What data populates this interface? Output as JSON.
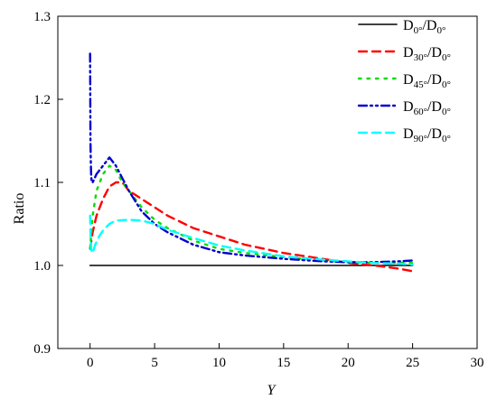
{
  "chart_data": {
    "type": "line",
    "title": "",
    "xlabel": "Y",
    "ylabel": "Ratio",
    "xlim": [
      -2.5,
      30
    ],
    "ylim": [
      0.9,
      1.3
    ],
    "x_ticks": [
      0,
      5,
      10,
      15,
      20,
      25,
      30
    ],
    "y_ticks": [
      0.9,
      1.0,
      1.1,
      1.2,
      1.3
    ],
    "x_tick_labels": [
      "0",
      "5",
      "10",
      "15",
      "20",
      "25",
      "30"
    ],
    "y_tick_labels": [
      "0.9",
      "1.0",
      "1.1",
      "1.2",
      "1.3"
    ],
    "grid": false,
    "legend_position": "top-right",
    "series": [
      {
        "legend": {
          "base": "D",
          "sub": "0°",
          "sep": "/D",
          "sub2": "0°"
        },
        "color": "#000000",
        "dash": "solid",
        "x": [
          0,
          25
        ],
        "y": [
          1.0,
          1.0
        ]
      },
      {
        "legend": {
          "base": "D",
          "sub": "30°",
          "sep": "/D",
          "sub2": "0°"
        },
        "color": "#ff0000",
        "dash": "dash",
        "x": [
          0,
          0.2,
          0.5,
          1.0,
          1.5,
          2.0,
          2.5,
          3.0,
          4.0,
          5.0,
          6.0,
          8.0,
          10.0,
          12.0,
          15.0,
          18.0,
          20.0,
          22.0,
          24.0,
          25.0
        ],
        "y": [
          1.02,
          1.04,
          1.06,
          1.08,
          1.095,
          1.1,
          1.1,
          1.09,
          1.08,
          1.07,
          1.06,
          1.045,
          1.035,
          1.025,
          1.015,
          1.008,
          1.003,
          1.0,
          0.996,
          0.993
        ]
      },
      {
        "legend": {
          "base": "D",
          "sub": "45°",
          "sep": "/D",
          "sub2": "0°"
        },
        "color": "#00dd00",
        "dash": "dot",
        "x": [
          0,
          0.2,
          0.5,
          1.0,
          1.5,
          2.0,
          2.5,
          3.0,
          4.0,
          5.0,
          6.0,
          8.0,
          10.0,
          12.0,
          15.0,
          18.0,
          20.0,
          22.0,
          24.0,
          25.0
        ],
        "y": [
          1.02,
          1.06,
          1.09,
          1.11,
          1.12,
          1.115,
          1.1,
          1.09,
          1.07,
          1.055,
          1.045,
          1.03,
          1.02,
          1.015,
          1.01,
          1.006,
          1.004,
          1.003,
          1.003,
          1.003
        ]
      },
      {
        "legend": {
          "base": "D",
          "sub": "60°",
          "sep": "/D",
          "sub2": "0°"
        },
        "color": "#0000cc",
        "dash": "dashdotdot",
        "x": [
          0.0,
          0.01,
          0.02,
          0.03,
          0.05,
          0.08,
          0.12,
          0.2,
          0.5,
          1.0,
          1.5,
          2.0,
          3.0,
          4.0,
          5.0,
          6.0,
          8.0,
          10.0,
          12.0,
          15.0,
          18.0,
          20.0,
          22.0,
          24.0,
          25.0
        ],
        "y": [
          1.255,
          1.22,
          1.18,
          1.15,
          1.13,
          1.11,
          1.1,
          1.1,
          1.11,
          1.12,
          1.13,
          1.12,
          1.09,
          1.065,
          1.05,
          1.04,
          1.025,
          1.016,
          1.012,
          1.008,
          1.005,
          1.004,
          1.004,
          1.005,
          1.006
        ]
      },
      {
        "legend": {
          "base": "D",
          "sub": "90°",
          "sep": "/D",
          "sub2": "0°"
        },
        "color": "#00ffff",
        "dash": "dash",
        "x": [
          0.0,
          0.05,
          0.1,
          0.2,
          0.4,
          0.7,
          1.0,
          1.5,
          2.0,
          3.0,
          4.0,
          5.0,
          6.0,
          8.0,
          10.0,
          12.0,
          15.0,
          18.0,
          20.0,
          22.0,
          24.0,
          25.0
        ],
        "y": [
          1.06,
          1.03,
          1.018,
          1.015,
          1.025,
          1.035,
          1.042,
          1.05,
          1.054,
          1.055,
          1.054,
          1.05,
          1.043,
          1.033,
          1.024,
          1.018,
          1.011,
          1.007,
          1.005,
          1.003,
          1.002,
          1.001
        ]
      }
    ]
  }
}
